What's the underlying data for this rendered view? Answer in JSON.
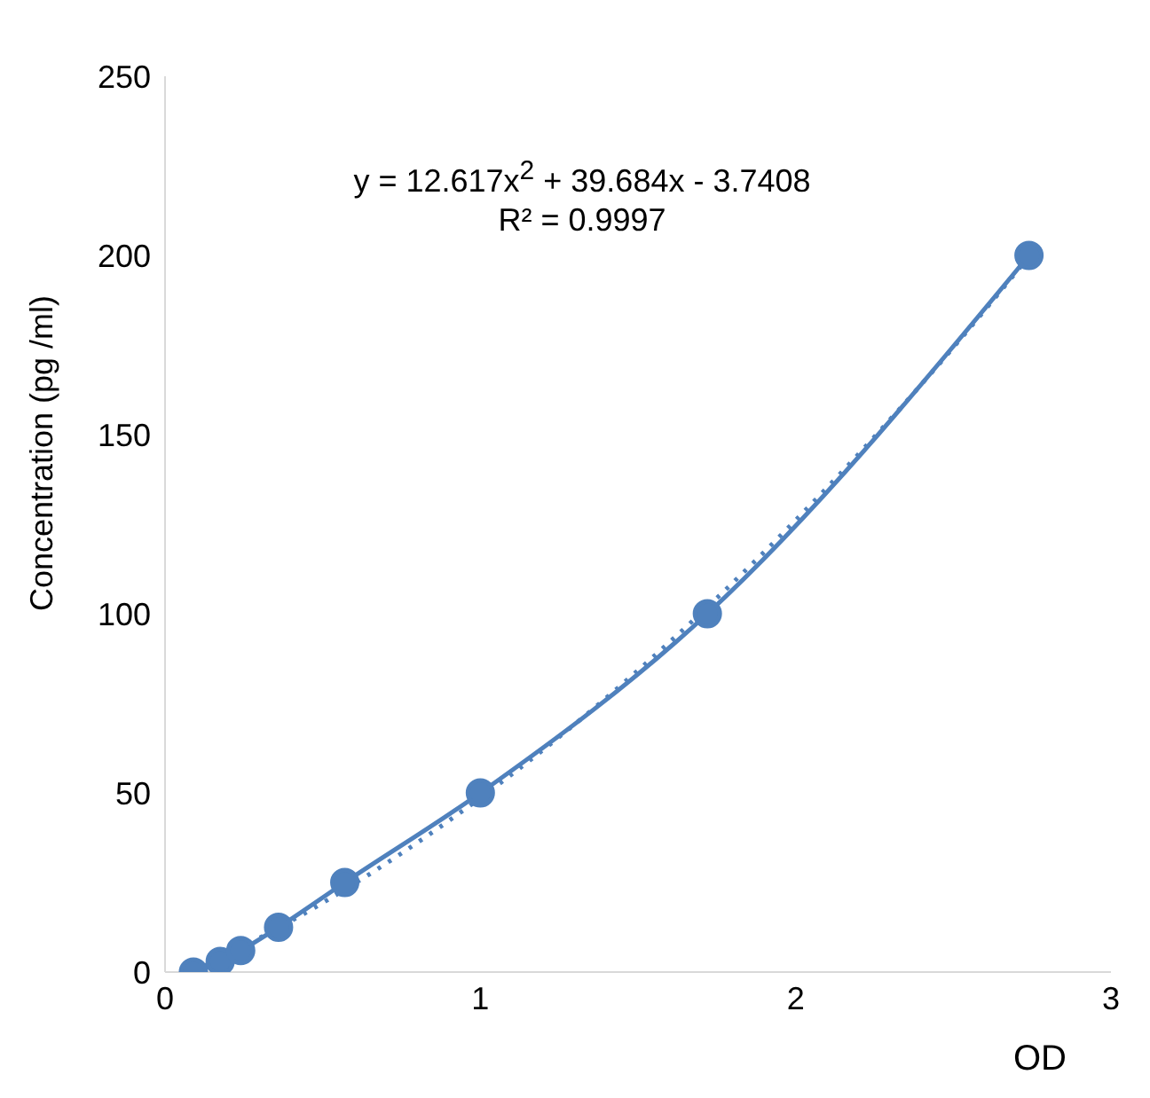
{
  "chart_data": {
    "type": "line",
    "xlabel": "OD",
    "ylabel": "Concentration (pg /ml)",
    "annotations": [
      "y = 12.617x$^{2}$ + 39.684x - 3.7408",
      "R² = 0.9997"
    ],
    "xlim": [
      0,
      3
    ],
    "xticks": [
      0,
      1,
      2,
      3
    ],
    "ylim": [
      0,
      250
    ],
    "yticks": [
      0,
      50,
      100,
      150,
      200,
      250
    ],
    "series": [
      {
        "color": "#4f81bd",
        "marker": "circle",
        "line_style": "solid",
        "x": [
          0.09,
          0.175,
          0.24,
          0.36,
          0.57,
          1.0,
          1.72,
          2.74
        ],
        "values": [
          0,
          3,
          6,
          12.5,
          25,
          50,
          100,
          200
        ]
      },
      {
        "color": "#4f81bd",
        "marker": "none",
        "line_style": "dotted",
        "x": [
          0.09,
          0.5,
          1.0,
          1.5,
          2.0,
          2.5,
          2.74
        ],
        "values": [
          0.2,
          19.3,
          48.6,
          84.2,
          126.1,
          174.3,
          199.7
        ]
      }
    ]
  }
}
